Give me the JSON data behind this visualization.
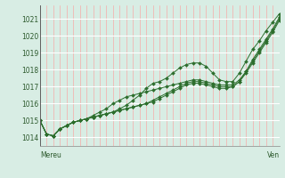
{
  "xlabel_left": "Mereu",
  "xlabel_right": "Ven",
  "ylim": [
    1013.5,
    1021.8
  ],
  "yticks": [
    1014,
    1015,
    1016,
    1017,
    1018,
    1019,
    1020,
    1021
  ],
  "bg_color": "#d8ede4",
  "line_color": "#2d6e2d",
  "marker_color": "#2d6e2d",
  "n_points": 37,
  "series": [
    [
      1015.0,
      1014.2,
      1014.1,
      1014.5,
      1014.7,
      1014.9,
      1015.0,
      1015.1,
      1015.2,
      1015.3,
      1015.4,
      1015.5,
      1015.7,
      1015.9,
      1016.2,
      1016.5,
      1016.9,
      1017.2,
      1017.3,
      1017.5,
      1017.8,
      1018.1,
      1018.3,
      1018.4,
      1018.4,
      1018.2,
      1017.8,
      1017.4,
      1017.3,
      1017.3,
      1017.8,
      1018.5,
      1019.2,
      1019.7,
      1020.3,
      1020.8,
      1021.3
    ],
    [
      1015.0,
      1014.2,
      1014.1,
      1014.5,
      1014.7,
      1014.9,
      1015.0,
      1015.1,
      1015.3,
      1015.5,
      1015.7,
      1016.0,
      1016.2,
      1016.4,
      1016.5,
      1016.6,
      1016.7,
      1016.8,
      1016.9,
      1017.0,
      1017.1,
      1017.2,
      1017.3,
      1017.4,
      1017.4,
      1017.3,
      1017.2,
      1017.1,
      1017.1,
      1017.1,
      1017.4,
      1017.9,
      1018.5,
      1019.1,
      1019.7,
      1020.3,
      1021.0
    ],
    [
      1015.0,
      1014.2,
      1014.1,
      1014.5,
      1014.7,
      1014.9,
      1015.0,
      1015.1,
      1015.2,
      1015.3,
      1015.4,
      1015.5,
      1015.6,
      1015.7,
      1015.8,
      1015.9,
      1016.0,
      1016.2,
      1016.4,
      1016.6,
      1016.8,
      1017.0,
      1017.2,
      1017.3,
      1017.3,
      1017.2,
      1017.1,
      1017.0,
      1017.0,
      1017.0,
      1017.3,
      1017.8,
      1018.4,
      1019.0,
      1019.6,
      1020.2,
      1020.9
    ],
    [
      1015.0,
      1014.2,
      1014.1,
      1014.5,
      1014.7,
      1014.9,
      1015.0,
      1015.1,
      1015.2,
      1015.3,
      1015.4,
      1015.5,
      1015.6,
      1015.7,
      1015.8,
      1015.9,
      1016.0,
      1016.1,
      1016.3,
      1016.5,
      1016.7,
      1016.9,
      1017.1,
      1017.2,
      1017.2,
      1017.1,
      1017.0,
      1016.9,
      1016.9,
      1017.0,
      1017.3,
      1017.9,
      1018.6,
      1019.2,
      1019.8,
      1020.4,
      1021.1
    ]
  ]
}
